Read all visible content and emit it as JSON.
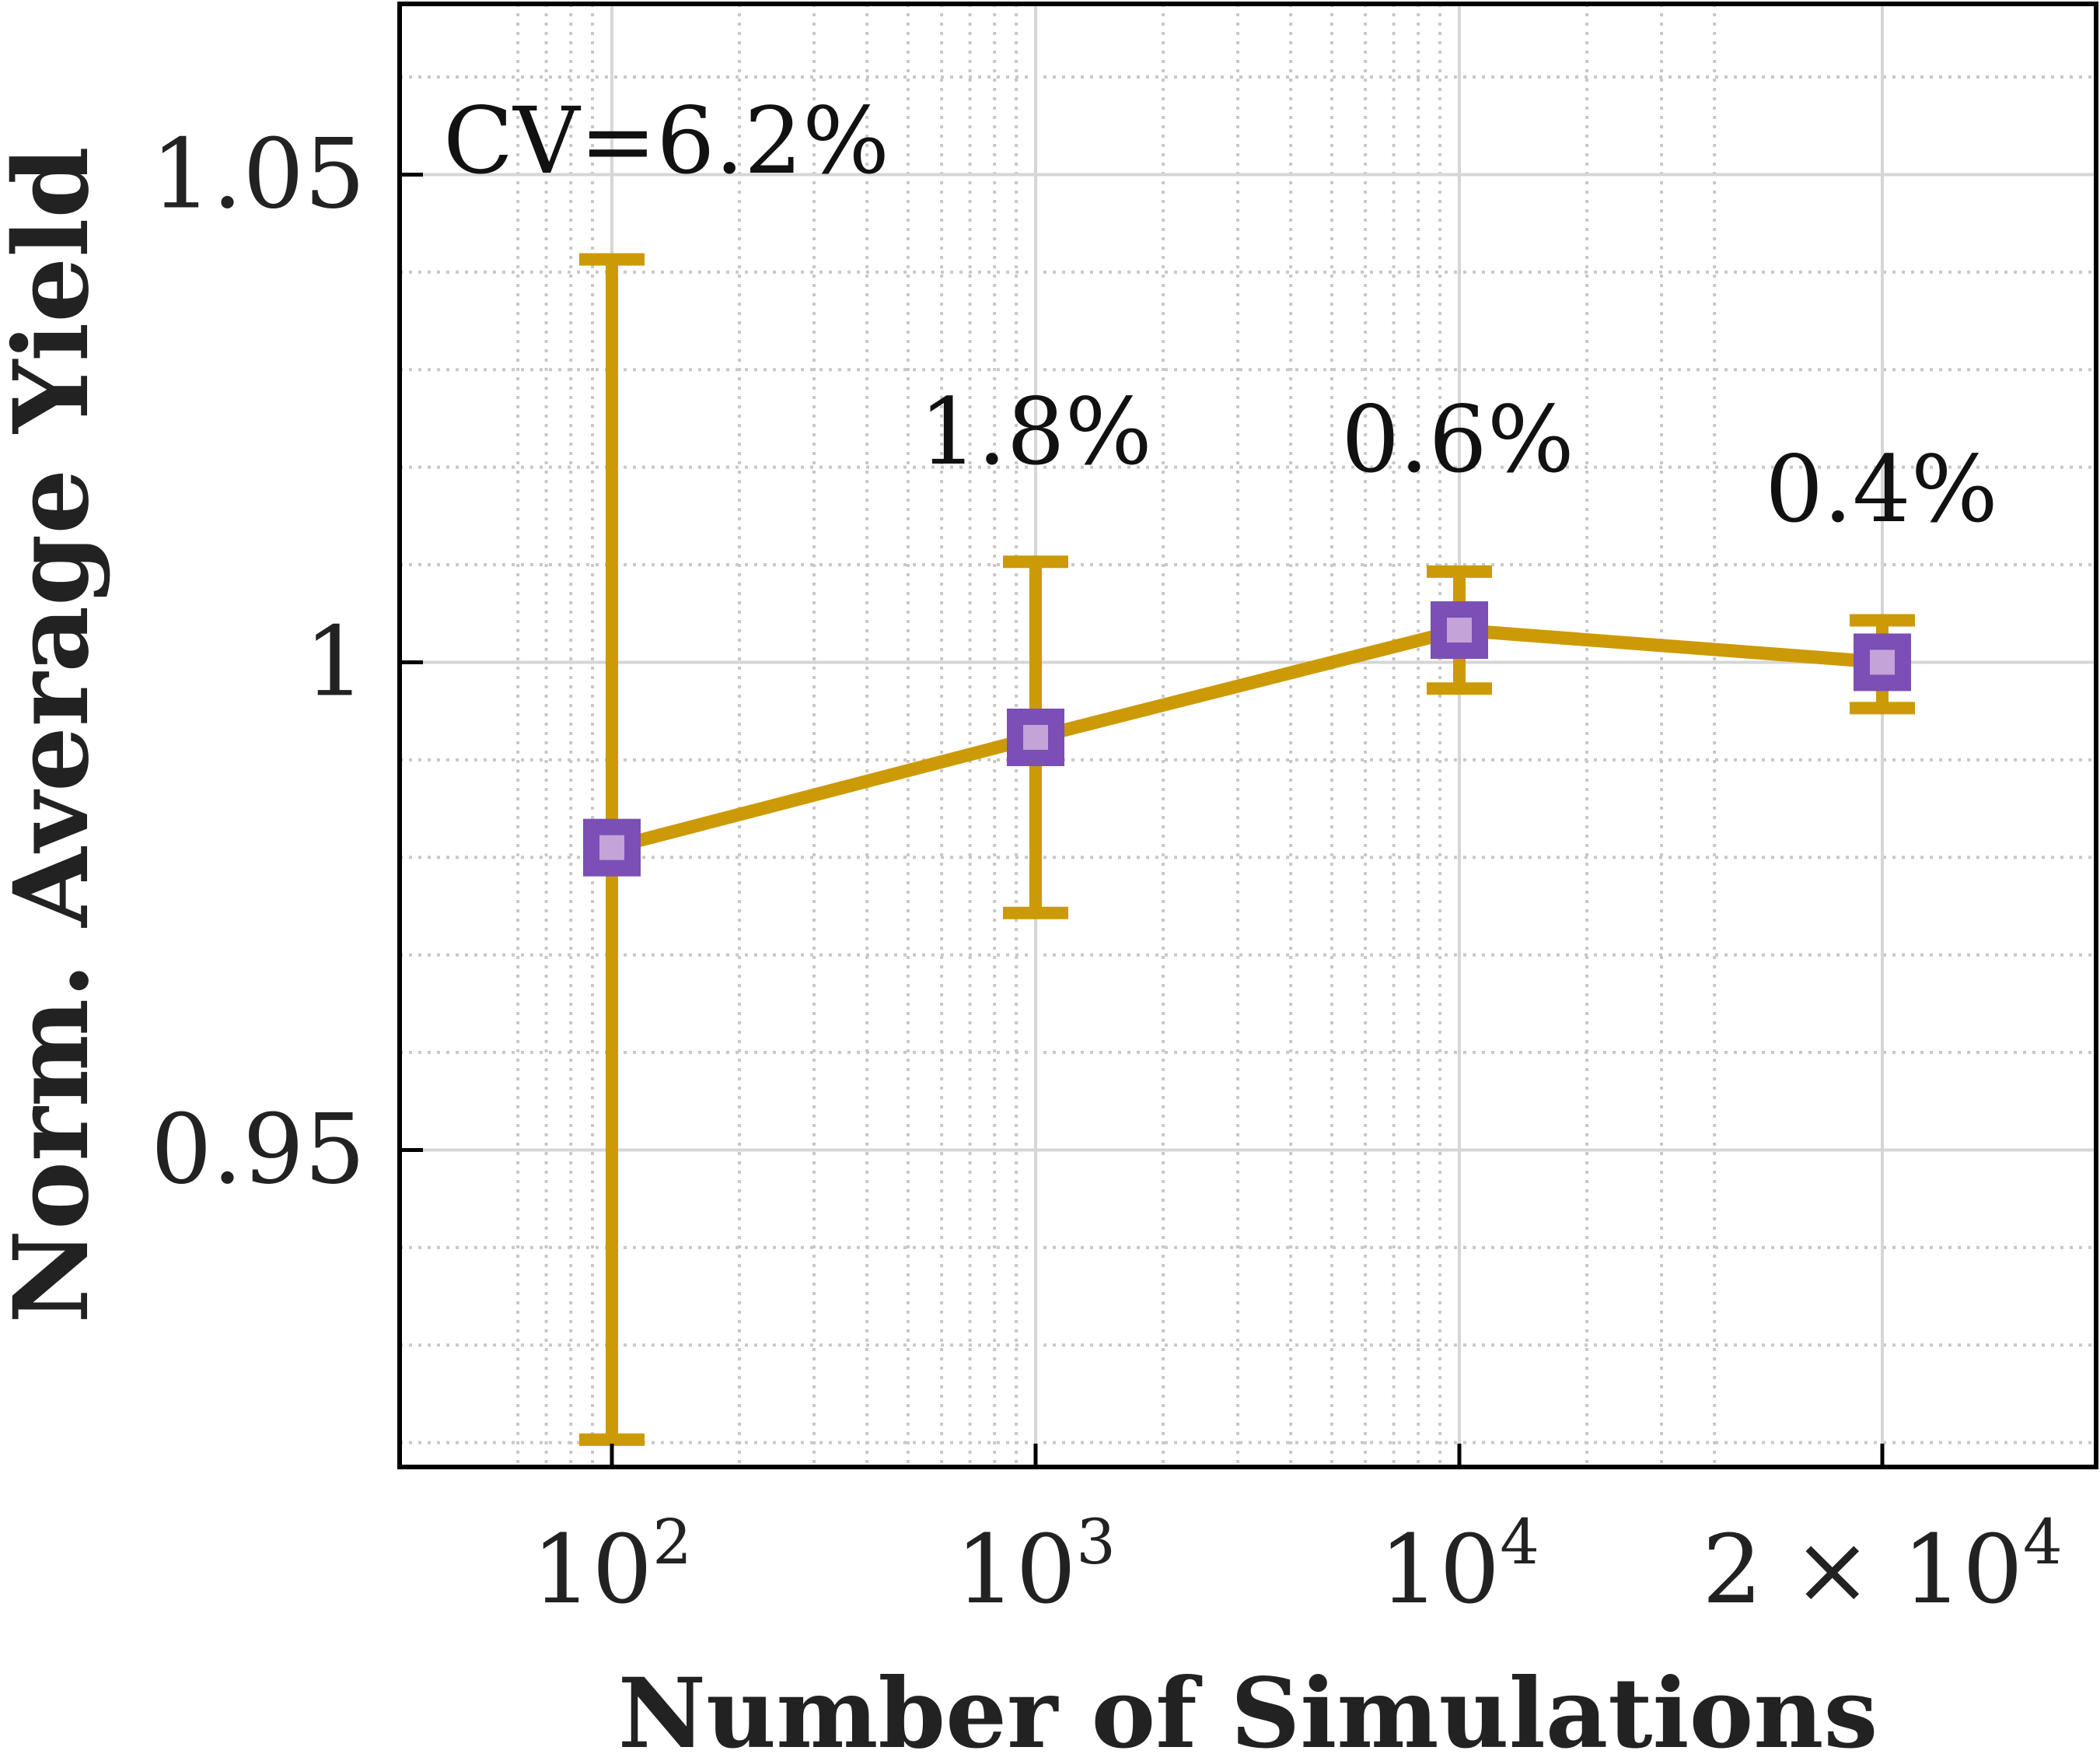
{
  "chart_data": {
    "type": "line",
    "title": "",
    "xlabel": "Number of Simulations",
    "ylabel": "Norm. Average Yield",
    "categories": [
      "10^2",
      "10^3",
      "10^4",
      "2×10^4"
    ],
    "x_tick_labels": [
      {
        "base": "10",
        "exp": "2"
      },
      {
        "base": "10",
        "exp": "3"
      },
      {
        "base": "10",
        "exp": "4"
      },
      {
        "base": "2 × 10",
        "exp": "4"
      }
    ],
    "yticks": [
      0.95,
      1.0,
      1.05
    ],
    "ytick_labels": [
      "0.95",
      "1",
      "1.05"
    ],
    "ylim": [
      0.9175,
      1.0675
    ],
    "grid": true,
    "series": [
      {
        "name": "Norm. Average Yield",
        "line_color": "#cc9a06",
        "marker_color": "#7b4fb5",
        "marker_inner_color": "#c3a3d8",
        "values": [
          0.981,
          0.9923,
          1.0033,
          1.0
        ],
        "error_low": [
          0.9203,
          0.9743,
          0.9973,
          0.9953
        ],
        "error_high": [
          1.0413,
          1.0103,
          1.0093,
          1.0043
        ]
      }
    ],
    "annotations": [
      "CV=6.2%",
      "1.8%",
      "0.6%",
      "0.4%"
    ]
  }
}
